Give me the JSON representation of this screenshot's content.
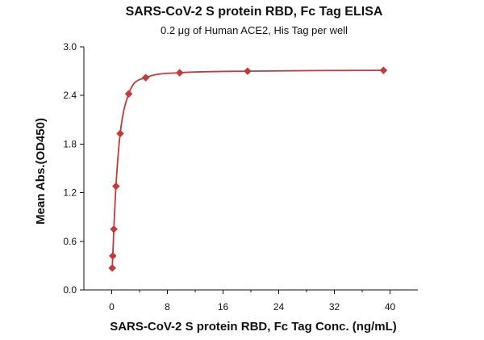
{
  "title": "SARS-CoV-2 S protein RBD, Fc Tag ELISA",
  "subtitle": "0.2 μg of Human ACE2, His Tag per well",
  "chart_data": {
    "type": "scatter",
    "title": "SARS-CoV-2 S protein RBD, Fc Tag ELISA",
    "subtitle": "0.2 μg of Human ACE2, His Tag per well",
    "xlabel": "SARS-CoV-2 S protein RBD, Fc Tag Conc. (ng/mL)",
    "ylabel": "Mean Abs.(OD450)",
    "xlim": [
      -4,
      44
    ],
    "ylim": [
      0,
      3.0
    ],
    "xticks": [
      0,
      8,
      16,
      24,
      32,
      40
    ],
    "yticks": [
      0.0,
      0.6,
      1.2,
      1.8,
      2.4,
      3.0
    ],
    "ytick_labels": [
      "0.0",
      "0.6",
      "1.2",
      "1.8",
      "2.4",
      "3.0"
    ],
    "xtick_labels": [
      "0",
      "8",
      "16",
      "24",
      "32",
      "40"
    ],
    "grid": false,
    "legend": "none",
    "series": [
      {
        "x": [
          0.076,
          0.153,
          0.305,
          0.61,
          1.22,
          2.44,
          4.88,
          9.77,
          19.53,
          39.06
        ],
        "y": [
          0.27,
          0.42,
          0.75,
          1.28,
          1.93,
          2.42,
          2.62,
          2.68,
          2.7,
          2.71
        ],
        "color": "#c23b3b",
        "marker": "diamond",
        "fit_line": true
      }
    ]
  }
}
